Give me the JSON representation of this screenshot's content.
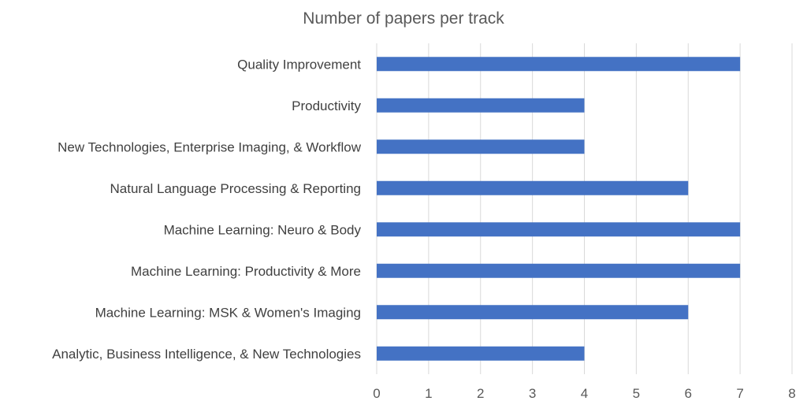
{
  "chart_data": {
    "type": "bar",
    "orientation": "horizontal",
    "title": "Number of papers per track",
    "categories": [
      "Analytic, Business Intelligence, & New Technologies",
      "Machine Learning: MSK & Women's Imaging",
      "Machine Learning: Productivity & More",
      "Machine Learning: Neuro & Body",
      "Natural Language Processing & Reporting",
      "New Technologies, Enterprise Imaging, & Workflow",
      "Productivity",
      "Quality Improvement"
    ],
    "values": [
      4,
      6,
      7,
      7,
      6,
      4,
      4,
      7
    ],
    "xlim": [
      0,
      8
    ],
    "xticks": [
      "0",
      "1",
      "2",
      "3",
      "4",
      "5",
      "6",
      "7",
      "8"
    ],
    "grid": true,
    "legend": "none",
    "bar_color": "#4472C4"
  }
}
